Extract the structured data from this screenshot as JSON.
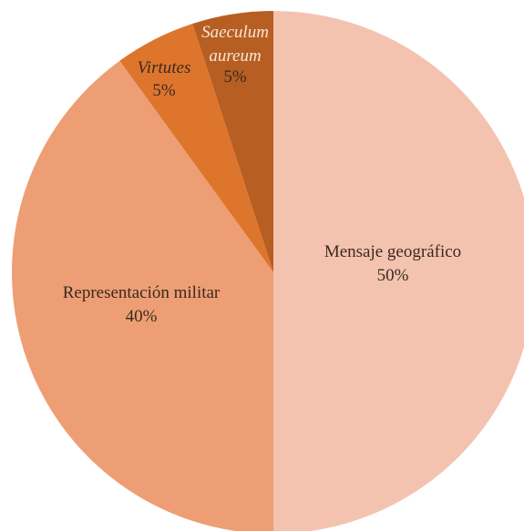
{
  "chart_data": {
    "type": "pie",
    "start_angle_deg": 90,
    "direction": "clockwise",
    "slices": [
      {
        "label": "Mensaje geográfico",
        "value": 50,
        "pct_label": "50%",
        "color": "#f4c3b0",
        "italic": false
      },
      {
        "label": "Representación militar",
        "value": 40,
        "pct_label": "40%",
        "color": "#ee9e74",
        "italic": false
      },
      {
        "label": "Virtutes",
        "value": 5,
        "pct_label": "5%",
        "color": "#de752d",
        "italic": true
      },
      {
        "label": "Saeculum aureum",
        "value": 5,
        "pct_label": "5%",
        "color": "#b75e22",
        "italic": true
      }
    ]
  }
}
